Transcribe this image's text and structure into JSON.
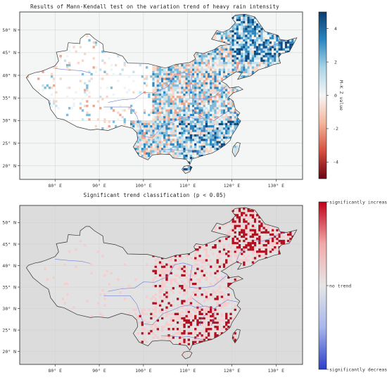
{
  "panel1": {
    "title": "Results of Mann-Kendall test on the variation trend of heavy rain intensity",
    "x_ticks": [
      "80° E",
      "90° E",
      "100° E",
      "110° E",
      "120° E",
      "130° E"
    ],
    "y_ticks": [
      "50° N",
      "45° N",
      "40° N",
      "35° N",
      "30° N",
      "25° N",
      "20° N"
    ],
    "colorbar": {
      "label": "M-K Z value",
      "ticks": [
        "4",
        "2",
        "0",
        "-2",
        "-4"
      ],
      "colors": [
        "#0b3c6e",
        "#2a86c0",
        "#a9d4e6",
        "#f6f6f6",
        "#f4b59b",
        "#d6503f",
        "#6c0214"
      ]
    }
  },
  "panel2": {
    "title": "Significant trend classification (p < 0.05)",
    "x_ticks": [
      "80° E",
      "90° E",
      "100° E",
      "110° E",
      "120° E",
      "130° E"
    ],
    "y_ticks": [
      "50° N",
      "45° N",
      "40° N",
      "35° N",
      "30° N",
      "25° N",
      "20° N"
    ],
    "colorbar": {
      "labels": [
        "significantly increased",
        "no trend",
        "significantly decreased"
      ],
      "colors": [
        "#c00018",
        "#f1a9a9",
        "#e6e6e6",
        "#a7b6ec",
        "#2b3fc9"
      ]
    }
  },
  "map_style": {
    "ocean_panel1": "#f4f6f6",
    "land_panel1": "#ffffff",
    "background_panel2": "#dcdcdc",
    "land_panel2": "#e2e2e2",
    "border": "#333333",
    "rivers": "#6f7fd6",
    "increase_color": "#b01020",
    "decrease_color": "#2e46d2",
    "light_increase": "#f6cccc"
  }
}
